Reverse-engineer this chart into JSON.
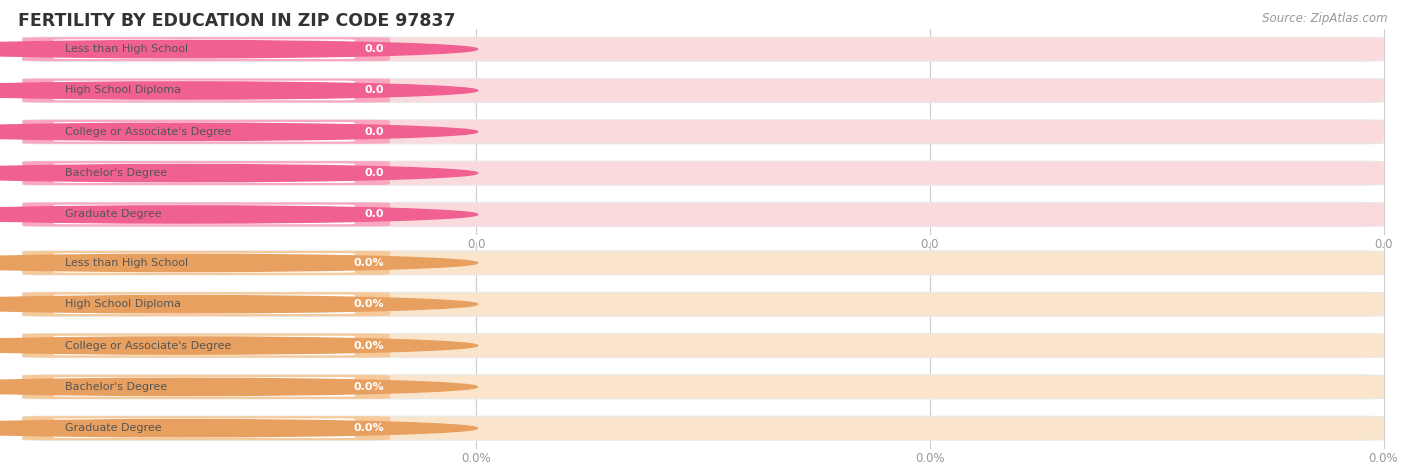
{
  "title": "FERTILITY BY EDUCATION IN ZIP CODE 97837",
  "source": "Source: ZipAtlas.com",
  "categories": [
    "Less than High School",
    "High School Diploma",
    "College or Associate's Degree",
    "Bachelor's Degree",
    "Graduate Degree"
  ],
  "group1_values": [
    0.0,
    0.0,
    0.0,
    0.0,
    0.0
  ],
  "group2_values": [
    0.0,
    0.0,
    0.0,
    0.0,
    0.0
  ],
  "group1_value_labels": [
    "0.0",
    "0.0",
    "0.0",
    "0.0",
    "0.0"
  ],
  "group2_value_labels": [
    "0.0%",
    "0.0%",
    "0.0%",
    "0.0%",
    "0.0%"
  ],
  "group1_bar_color": "#F9A8C0",
  "group1_bg_color": "#F0F0F0",
  "group1_pill_bg": "#FADADD",
  "group1_dot_color": "#F06090",
  "group2_bar_color": "#F5C99A",
  "group2_bg_color": "#F0F0F0",
  "group2_pill_bg": "#FAE5CC",
  "group2_dot_color": "#E8A060",
  "grid_color": "#CCCCCC",
  "tick_label_color": "#999999",
  "label_text_color": "#555555",
  "title_color": "#333333",
  "source_color": "#999999",
  "background_color": "#FFFFFF",
  "group1_xtick_labels": [
    "0.0",
    "0.0",
    "0.0"
  ],
  "group2_xtick_labels": [
    "0.0%",
    "0.0%",
    "0.0%"
  ],
  "white_label_area_color": "#FFFFFF"
}
